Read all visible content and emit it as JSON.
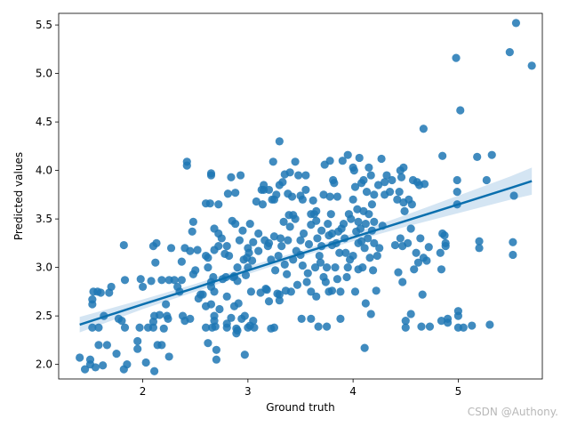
{
  "chart_data": {
    "type": "scatter",
    "title": "",
    "xlabel": "Ground truth",
    "ylabel": "Predicted values",
    "xlim": [
      1.2,
      5.8
    ],
    "ylim": [
      1.85,
      5.62
    ],
    "xticks": [
      2,
      3,
      4,
      5
    ],
    "yticks": [
      2.0,
      2.5,
      3.0,
      3.5,
      4.0,
      4.5,
      5.0,
      5.5
    ],
    "ytick_labels": [
      "2.0",
      "2.5",
      "3.0",
      "3.5",
      "4.0",
      "4.5",
      "5.0",
      "5.5"
    ],
    "grid": false,
    "point_color": "#1f77b4",
    "line_color": "#0a6fae",
    "band_color": "#c6dcef",
    "regression": {
      "x": [
        1.4,
        2.0,
        2.5,
        3.0,
        3.5,
        4.0,
        4.5,
        5.0,
        5.5,
        5.7
      ],
      "y": [
        2.41,
        2.62,
        2.79,
        2.97,
        3.14,
        3.31,
        3.48,
        3.65,
        3.82,
        3.89
      ],
      "lower": [
        2.33,
        2.57,
        2.75,
        2.93,
        3.11,
        3.27,
        3.42,
        3.56,
        3.7,
        3.75
      ],
      "upper": [
        2.49,
        2.67,
        2.83,
        3.01,
        3.17,
        3.35,
        3.54,
        3.74,
        3.94,
        4.03
      ]
    },
    "points": [
      [
        1.4,
        2.07
      ],
      [
        1.45,
        1.95
      ],
      [
        1.5,
        2.0
      ],
      [
        1.5,
        2.05
      ],
      [
        1.52,
        2.38
      ],
      [
        1.52,
        2.62
      ],
      [
        1.52,
        2.67
      ],
      [
        1.53,
        2.75
      ],
      [
        1.55,
        1.97
      ],
      [
        1.57,
        2.75
      ],
      [
        1.58,
        2.38
      ],
      [
        1.58,
        2.2
      ],
      [
        1.6,
        2.74
      ],
      [
        1.62,
        1.99
      ],
      [
        1.63,
        2.5
      ],
      [
        1.66,
        2.2
      ],
      [
        1.68,
        2.74
      ],
      [
        1.7,
        2.8
      ],
      [
        1.75,
        2.11
      ],
      [
        1.77,
        2.47
      ],
      [
        1.8,
        2.45
      ],
      [
        1.82,
        1.95
      ],
      [
        1.82,
        3.23
      ],
      [
        1.83,
        2.87
      ],
      [
        1.83,
        2.38
      ],
      [
        1.85,
        2.0
      ],
      [
        1.95,
        2.24
      ],
      [
        1.95,
        2.16
      ],
      [
        1.97,
        2.38
      ],
      [
        1.98,
        2.88
      ],
      [
        2.0,
        2.8
      ],
      [
        2.03,
        2.02
      ],
      [
        2.05,
        2.38
      ],
      [
        2.08,
        2.86
      ],
      [
        2.1,
        2.38
      ],
      [
        2.1,
        2.44
      ],
      [
        2.1,
        3.22
      ],
      [
        2.11,
        1.93
      ],
      [
        2.11,
        2.5
      ],
      [
        2.12,
        3.05
      ],
      [
        2.13,
        3.25
      ],
      [
        2.14,
        2.2
      ],
      [
        2.16,
        2.51
      ],
      [
        2.18,
        2.2
      ],
      [
        2.18,
        2.87
      ],
      [
        2.2,
        2.37
      ],
      [
        2.22,
        2.62
      ],
      [
        2.23,
        2.5
      ],
      [
        2.24,
        2.47
      ],
      [
        2.25,
        2.87
      ],
      [
        2.25,
        2.08
      ],
      [
        2.27,
        3.2
      ],
      [
        2.3,
        2.87
      ],
      [
        2.33,
        2.8
      ],
      [
        2.35,
        2.75
      ],
      [
        2.37,
        2.87
      ],
      [
        2.37,
        3.06
      ],
      [
        2.38,
        2.5
      ],
      [
        2.4,
        2.45
      ],
      [
        2.4,
        3.2
      ],
      [
        2.42,
        4.09
      ],
      [
        2.42,
        4.05
      ],
      [
        2.45,
        3.17
      ],
      [
        2.45,
        2.47
      ],
      [
        2.47,
        3.37
      ],
      [
        2.48,
        3.47
      ],
      [
        2.48,
        2.93
      ],
      [
        2.5,
        2.97
      ],
      [
        2.52,
        3.18
      ],
      [
        2.53,
        2.68
      ],
      [
        2.55,
        2.72
      ],
      [
        2.57,
        2.72
      ],
      [
        2.6,
        3.66
      ],
      [
        2.6,
        3.12
      ],
      [
        2.6,
        2.38
      ],
      [
        2.6,
        2.6
      ],
      [
        2.62,
        2.22
      ],
      [
        2.62,
        3.0
      ],
      [
        2.62,
        3.1
      ],
      [
        2.64,
        3.66
      ],
      [
        2.65,
        3.95
      ],
      [
        2.65,
        2.85
      ],
      [
        2.65,
        2.62
      ],
      [
        2.65,
        3.97
      ],
      [
        2.65,
        2.8
      ],
      [
        2.66,
        2.38
      ],
      [
        2.67,
        2.9
      ],
      [
        2.68,
        2.45
      ],
      [
        2.68,
        2.5
      ],
      [
        2.68,
        3.4
      ],
      [
        2.68,
        2.75
      ],
      [
        2.68,
        3.18
      ],
      [
        2.69,
        2.39
      ],
      [
        2.7,
        2.05
      ],
      [
        2.7,
        2.15
      ],
      [
        2.72,
        3.65
      ],
      [
        2.72,
        3.35
      ],
      [
        2.72,
        3.22
      ],
      [
        2.73,
        2.57
      ],
      [
        2.75,
        3.3
      ],
      [
        2.76,
        2.88
      ],
      [
        2.78,
        3.14
      ],
      [
        2.79,
        2.9
      ],
      [
        2.8,
        2.7
      ],
      [
        2.8,
        2.38
      ],
      [
        2.8,
        2.42
      ],
      [
        2.8,
        3.22
      ],
      [
        2.81,
        3.76
      ],
      [
        2.82,
        3.12
      ],
      [
        2.84,
        2.48
      ],
      [
        2.84,
        3.93
      ],
      [
        2.85,
        3.48
      ],
      [
        2.86,
        2.9
      ],
      [
        2.87,
        2.6
      ],
      [
        2.87,
        2.91
      ],
      [
        2.88,
        3.77
      ],
      [
        2.88,
        3.45
      ],
      [
        2.89,
        2.37
      ],
      [
        2.89,
        2.32
      ],
      [
        2.9,
        3.0
      ],
      [
        2.9,
        2.86
      ],
      [
        2.9,
        2.35
      ],
      [
        2.91,
        2.63
      ],
      [
        2.92,
        3.28
      ],
      [
        2.93,
        3.95
      ],
      [
        2.94,
        2.47
      ],
      [
        2.95,
        3.38
      ],
      [
        2.96,
        3.08
      ],
      [
        2.97,
        2.1
      ],
      [
        2.97,
        2.5
      ],
      [
        2.98,
        2.92
      ],
      [
        2.99,
        3.1
      ],
      [
        3.0,
        3.0
      ],
      [
        3.0,
        2.38
      ],
      [
        3.0,
        3.2
      ],
      [
        3.01,
        3.15
      ],
      [
        3.02,
        3.45
      ],
      [
        3.02,
        2.4
      ],
      [
        3.03,
        2.75
      ],
      [
        3.04,
        3.07
      ],
      [
        3.05,
        3.26
      ],
      [
        3.05,
        2.45
      ],
      [
        3.06,
        2.38
      ],
      [
        3.08,
        3.68
      ],
      [
        3.1,
        3.17
      ],
      [
        3.1,
        3.35
      ],
      [
        3.12,
        2.74
      ],
      [
        3.13,
        3.8
      ],
      [
        3.14,
        3.65
      ],
      [
        3.15,
        3.85
      ],
      [
        3.15,
        3.8
      ],
      [
        3.16,
        3.28
      ],
      [
        3.17,
        2.78
      ],
      [
        3.18,
        2.77
      ],
      [
        3.19,
        3.22
      ],
      [
        3.2,
        2.65
      ],
      [
        3.2,
        3.25
      ],
      [
        3.2,
        3.8
      ],
      [
        3.22,
        2.37
      ],
      [
        3.22,
        3.08
      ],
      [
        3.23,
        3.7
      ],
      [
        3.24,
        4.09
      ],
      [
        3.25,
        2.38
      ],
      [
        3.25,
        3.7
      ],
      [
        3.25,
        3.32
      ],
      [
        3.26,
        2.97
      ],
      [
        3.27,
        3.75
      ],
      [
        3.28,
        2.73
      ],
      [
        3.29,
        3.12
      ],
      [
        3.3,
        4.3
      ],
      [
        3.3,
        3.85
      ],
      [
        3.3,
        2.66
      ],
      [
        3.3,
        2.72
      ],
      [
        3.31,
        3.3
      ],
      [
        3.32,
        3.22
      ],
      [
        3.33,
        3.88
      ],
      [
        3.34,
        3.47
      ],
      [
        3.35,
        3.96
      ],
      [
        3.35,
        3.03
      ],
      [
        3.36,
        2.76
      ],
      [
        3.37,
        2.93
      ],
      [
        3.38,
        3.28
      ],
      [
        3.38,
        3.76
      ],
      [
        3.39,
        3.54
      ],
      [
        3.4,
        3.42
      ],
      [
        3.4,
        3.98
      ],
      [
        3.41,
        2.75
      ],
      [
        3.42,
        3.73
      ],
      [
        3.43,
        3.54
      ],
      [
        3.43,
        3.08
      ],
      [
        3.45,
        3.5
      ],
      [
        3.45,
        4.09
      ],
      [
        3.46,
        3.17
      ],
      [
        3.47,
        2.82
      ],
      [
        3.48,
        3.95
      ],
      [
        3.5,
        3.74
      ],
      [
        3.5,
        3.28
      ],
      [
        3.5,
        3.13
      ],
      [
        3.51,
        2.47
      ],
      [
        3.52,
        3.02
      ],
      [
        3.52,
        3.7
      ],
      [
        3.53,
        3.35
      ],
      [
        3.55,
        3.95
      ],
      [
        3.55,
        3.8
      ],
      [
        3.56,
        2.85
      ],
      [
        3.57,
        2.94
      ],
      [
        3.58,
        3.24
      ],
      [
        3.6,
        3.55
      ],
      [
        3.6,
        3.44
      ],
      [
        3.6,
        2.47
      ],
      [
        3.6,
        2.75
      ],
      [
        3.62,
        3.69
      ],
      [
        3.63,
        3.55
      ],
      [
        3.64,
        3.0
      ],
      [
        3.65,
        3.48
      ],
      [
        3.65,
        3.58
      ],
      [
        3.65,
        2.7
      ],
      [
        3.66,
        3.3
      ],
      [
        3.67,
        2.39
      ],
      [
        3.68,
        3.12
      ],
      [
        3.69,
        3.05
      ],
      [
        3.7,
        3.38
      ],
      [
        3.7,
        3.22
      ],
      [
        3.72,
        3.75
      ],
      [
        3.72,
        2.9
      ],
      [
        3.73,
        4.06
      ],
      [
        3.74,
        2.85
      ],
      [
        3.75,
        3.0
      ],
      [
        3.75,
        2.39
      ],
      [
        3.76,
        3.45
      ],
      [
        3.77,
        2.75
      ],
      [
        3.77,
        3.33
      ],
      [
        3.78,
        3.73
      ],
      [
        3.78,
        4.1
      ],
      [
        3.79,
        3.55
      ],
      [
        3.8,
        3.23
      ],
      [
        3.8,
        3.35
      ],
      [
        3.8,
        2.76
      ],
      [
        3.81,
        3.9
      ],
      [
        3.82,
        3.87
      ],
      [
        3.83,
        3.0
      ],
      [
        3.84,
        3.25
      ],
      [
        3.85,
        3.73
      ],
      [
        3.85,
        2.88
      ],
      [
        3.86,
        3.37
      ],
      [
        3.87,
        3.15
      ],
      [
        3.88,
        2.75
      ],
      [
        3.88,
        2.47
      ],
      [
        3.89,
        3.4
      ],
      [
        3.9,
        4.1
      ],
      [
        3.91,
        3.45
      ],
      [
        3.92,
        3.3
      ],
      [
        3.93,
        3.15
      ],
      [
        3.94,
        2.9
      ],
      [
        3.95,
        4.16
      ],
      [
        3.95,
        3.0
      ],
      [
        3.96,
        3.55
      ],
      [
        3.97,
        3.08
      ],
      [
        3.98,
        3.5
      ],
      [
        4.0,
        3.12
      ],
      [
        4.0,
        3.7
      ],
      [
        4.0,
        4.03
      ],
      [
        4.01,
        4.0
      ],
      [
        4.02,
        3.83
      ],
      [
        4.02,
        2.75
      ],
      [
        4.03,
        3.37
      ],
      [
        4.04,
        3.6
      ],
      [
        4.05,
        3.25
      ],
      [
        4.05,
        3.47
      ],
      [
        4.05,
        2.98
      ],
      [
        4.06,
        4.13
      ],
      [
        4.07,
        3.4
      ],
      [
        4.08,
        3.27
      ],
      [
        4.08,
        3.87
      ],
      [
        4.09,
        3.0
      ],
      [
        4.1,
        3.58
      ],
      [
        4.1,
        3.9
      ],
      [
        4.11,
        2.17
      ],
      [
        4.11,
        3.2
      ],
      [
        4.12,
        2.63
      ],
      [
        4.12,
        3.45
      ],
      [
        4.13,
        3.78
      ],
      [
        4.14,
        3.3
      ],
      [
        4.15,
        4.03
      ],
      [
        4.15,
        3.55
      ],
      [
        4.16,
        3.1
      ],
      [
        4.17,
        2.52
      ],
      [
        4.17,
        3.95
      ],
      [
        4.18,
        3.65
      ],
      [
        4.18,
        3.38
      ],
      [
        4.19,
        2.97
      ],
      [
        4.2,
        3.25
      ],
      [
        4.2,
        3.75
      ],
      [
        4.2,
        3.47
      ],
      [
        4.22,
        2.76
      ],
      [
        4.23,
        3.12
      ],
      [
        4.24,
        3.85
      ],
      [
        4.25,
        3.2
      ],
      [
        4.27,
        4.12
      ],
      [
        4.28,
        3.43
      ],
      [
        4.3,
        3.88
      ],
      [
        4.3,
        3.75
      ],
      [
        4.32,
        3.95
      ],
      [
        4.35,
        3.78
      ],
      [
        4.37,
        3.9
      ],
      [
        4.4,
        3.23
      ],
      [
        4.42,
        3.7
      ],
      [
        4.43,
        2.95
      ],
      [
        4.44,
        3.78
      ],
      [
        4.45,
        3.3
      ],
      [
        4.45,
        4.0
      ],
      [
        4.46,
        3.93
      ],
      [
        4.47,
        3.22
      ],
      [
        4.47,
        2.85
      ],
      [
        4.48,
        4.03
      ],
      [
        4.48,
        3.67
      ],
      [
        4.49,
        3.58
      ],
      [
        4.5,
        2.45
      ],
      [
        4.5,
        2.38
      ],
      [
        4.52,
        3.25
      ],
      [
        4.53,
        3.7
      ],
      [
        4.55,
        3.4
      ],
      [
        4.55,
        2.52
      ],
      [
        4.56,
        3.65
      ],
      [
        4.57,
        3.9
      ],
      [
        4.58,
        2.98
      ],
      [
        4.6,
        3.15
      ],
      [
        4.61,
        3.88
      ],
      [
        4.62,
        3.05
      ],
      [
        4.63,
        3.85
      ],
      [
        4.64,
        3.3
      ],
      [
        4.65,
        2.39
      ],
      [
        4.66,
        2.72
      ],
      [
        4.67,
        3.1
      ],
      [
        4.67,
        4.43
      ],
      [
        4.68,
        3.86
      ],
      [
        4.7,
        3.07
      ],
      [
        4.72,
        3.21
      ],
      [
        4.73,
        2.39
      ],
      [
        4.83,
        3.15
      ],
      [
        4.84,
        2.98
      ],
      [
        4.84,
        2.45
      ],
      [
        4.85,
        4.15
      ],
      [
        4.85,
        3.35
      ],
      [
        4.87,
        3.33
      ],
      [
        4.88,
        3.25
      ],
      [
        4.88,
        3.22
      ],
      [
        4.9,
        2.43
      ],
      [
        4.9,
        2.47
      ],
      [
        4.98,
        5.16
      ],
      [
        4.99,
        3.78
      ],
      [
        4.99,
        3.9
      ],
      [
        4.99,
        3.65
      ],
      [
        5.0,
        2.38
      ],
      [
        5.0,
        2.55
      ],
      [
        5.0,
        2.5
      ],
      [
        5.02,
        4.62
      ],
      [
        5.05,
        2.38
      ],
      [
        5.13,
        2.4
      ],
      [
        5.18,
        4.14
      ],
      [
        5.2,
        3.27
      ],
      [
        5.2,
        3.2
      ],
      [
        5.27,
        3.9
      ],
      [
        5.3,
        2.41
      ],
      [
        5.32,
        4.16
      ],
      [
        5.49,
        5.22
      ],
      [
        5.52,
        3.26
      ],
      [
        5.52,
        3.13
      ],
      [
        5.53,
        3.74
      ],
      [
        5.55,
        5.52
      ],
      [
        5.7,
        5.08
      ]
    ]
  },
  "watermark": "CSDN @Authony."
}
